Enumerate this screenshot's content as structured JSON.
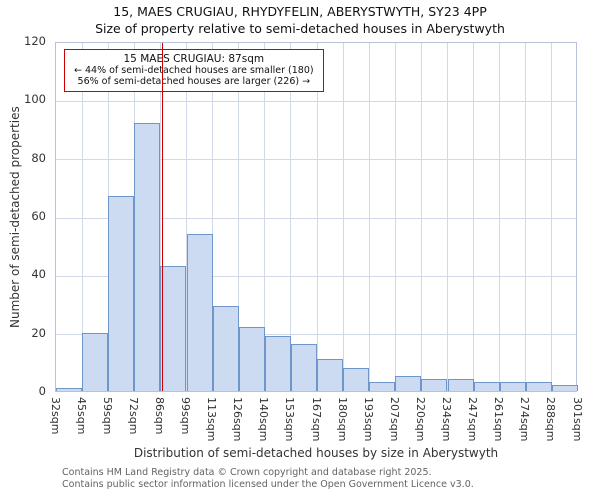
{
  "title": {
    "line1": "15, MAES CRUGIAU, RHYDYFELIN, ABERYSTWYTH, SY23 4PP",
    "line2": "Size of property relative to semi-detached houses in Aberystwyth"
  },
  "annotation": {
    "line1": "15 MAES CRUGIAU: 87sqm",
    "line2": "← 44% of semi-detached houses are smaller (180)",
    "line3": "56% of semi-detached houses are larger (226) →"
  },
  "footer": {
    "line1": "Contains HM Land Registry data © Crown copyright and database right 2025.",
    "line2": "Contains public sector information licensed under the Open Government Licence v3.0."
  },
  "chart_data": {
    "type": "bar",
    "title": "15, MAES CRUGIAU, RHYDYFELIN, ABERYSTWYTH, SY23 4PP — Size of property relative to semi-detached houses in Aberystwyth",
    "xlabel": "Distribution of semi-detached houses by size in Aberystwyth",
    "ylabel": "Number of semi-detached properties",
    "bin_edges": [
      32,
      45,
      59,
      72,
      86,
      99,
      113,
      126,
      140,
      153,
      167,
      180,
      193,
      207,
      220,
      234,
      247,
      261,
      274,
      288,
      301
    ],
    "bin_labels": [
      "32sqm",
      "45sqm",
      "59sqm",
      "72sqm",
      "86sqm",
      "99sqm",
      "113sqm",
      "126sqm",
      "140sqm",
      "153sqm",
      "167sqm",
      "180sqm",
      "193sqm",
      "207sqm",
      "220sqm",
      "234sqm",
      "247sqm",
      "261sqm",
      "274sqm",
      "288sqm",
      "301sqm"
    ],
    "values": [
      1,
      20,
      67,
      92,
      43,
      54,
      29,
      22,
      19,
      16,
      11,
      8,
      3,
      5,
      4,
      4,
      3,
      3,
      3,
      2
    ],
    "ylim": [
      0,
      120
    ],
    "yticks": [
      0,
      20,
      40,
      60,
      80,
      100,
      120
    ],
    "grid": true,
    "legend": "none",
    "marker": {
      "value": 87,
      "smaller_pct": 44,
      "smaller_count": 180,
      "larger_pct": 56,
      "larger_count": 226
    },
    "colors": {
      "bar_fill": "#ccdbf1",
      "bar_border": "#6e96c8",
      "marker_line": "#cc0000",
      "grid": "#d2dae9",
      "frame": "#b9c2d6",
      "annotation_border": "#cc0000"
    }
  }
}
